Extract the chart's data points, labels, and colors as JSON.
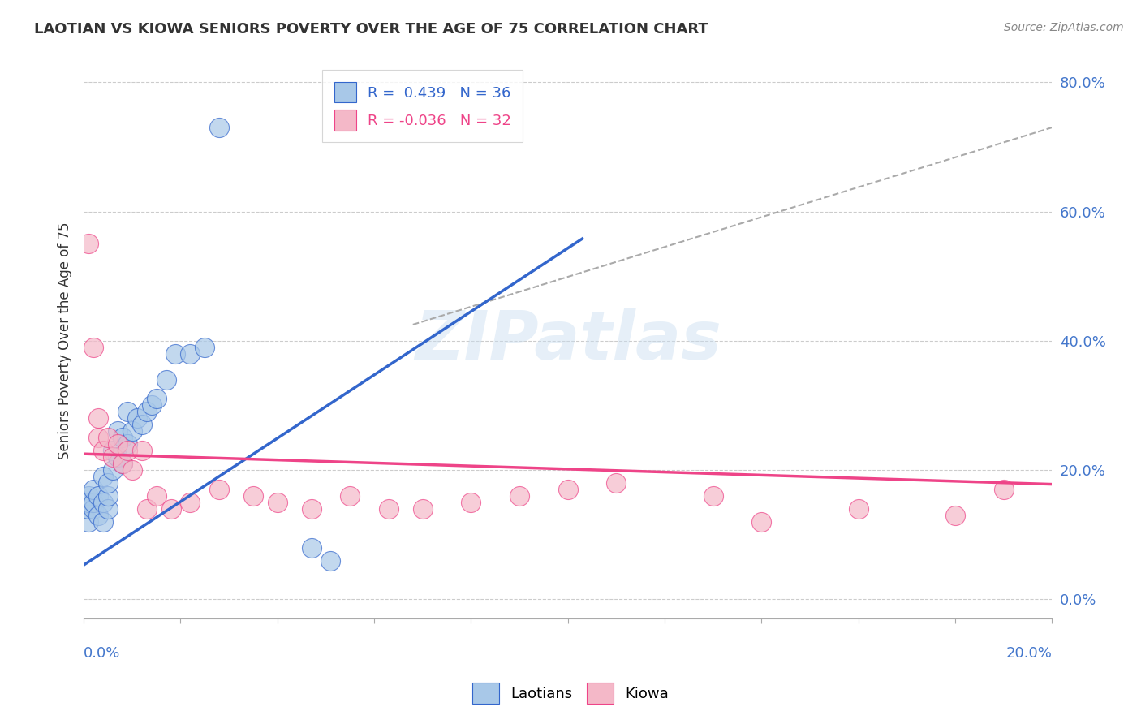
{
  "title": "LAOTIAN VS KIOWA SENIORS POVERTY OVER THE AGE OF 75 CORRELATION CHART",
  "source": "Source: ZipAtlas.com",
  "ylabel": "Seniors Poverty Over the Age of 75",
  "ytick_labels": [
    "0.0%",
    "20.0%",
    "40.0%",
    "60.0%",
    "80.0%"
  ],
  "ytick_values": [
    0.0,
    0.2,
    0.4,
    0.6,
    0.8
  ],
  "xlim": [
    0.0,
    0.2
  ],
  "ylim": [
    -0.03,
    0.83
  ],
  "legend_r_blue": "R =  0.439",
  "legend_n_blue": "N = 36",
  "legend_r_pink": "R = -0.036",
  "legend_n_pink": "N = 32",
  "watermark": "ZIPatlas",
  "laotian_color": "#a8c8e8",
  "kiowa_color": "#f4b8c8",
  "blue_line_color": "#3366cc",
  "pink_line_color": "#ee4488",
  "gray_dash_color": "#aaaaaa",
  "blue_line_x": [
    0.0,
    0.103
  ],
  "blue_line_y": [
    0.053,
    0.558
  ],
  "pink_line_x": [
    0.0,
    0.2
  ],
  "pink_line_y": [
    0.225,
    0.178
  ],
  "gray_line_x": [
    0.068,
    0.2
  ],
  "gray_line_y": [
    0.425,
    0.73
  ],
  "laotian_points_x": [
    0.001,
    0.001,
    0.001,
    0.001,
    0.002,
    0.002,
    0.002,
    0.003,
    0.003,
    0.004,
    0.004,
    0.004,
    0.005,
    0.005,
    0.005,
    0.006,
    0.006,
    0.007,
    0.007,
    0.008,
    0.008,
    0.009,
    0.009,
    0.01,
    0.011,
    0.012,
    0.013,
    0.014,
    0.015,
    0.017,
    0.019,
    0.022,
    0.025,
    0.028,
    0.047,
    0.051
  ],
  "laotian_points_y": [
    0.12,
    0.14,
    0.15,
    0.16,
    0.14,
    0.15,
    0.17,
    0.13,
    0.16,
    0.12,
    0.15,
    0.19,
    0.14,
    0.16,
    0.18,
    0.2,
    0.23,
    0.22,
    0.26,
    0.21,
    0.25,
    0.24,
    0.29,
    0.26,
    0.28,
    0.27,
    0.29,
    0.3,
    0.31,
    0.34,
    0.38,
    0.38,
    0.39,
    0.73,
    0.08,
    0.06
  ],
  "kiowa_points_x": [
    0.001,
    0.002,
    0.003,
    0.003,
    0.004,
    0.005,
    0.006,
    0.007,
    0.008,
    0.009,
    0.01,
    0.012,
    0.013,
    0.015,
    0.018,
    0.022,
    0.028,
    0.035,
    0.04,
    0.047,
    0.055,
    0.063,
    0.07,
    0.08,
    0.09,
    0.1,
    0.11,
    0.13,
    0.14,
    0.16,
    0.18,
    0.19
  ],
  "kiowa_points_y": [
    0.55,
    0.39,
    0.25,
    0.28,
    0.23,
    0.25,
    0.22,
    0.24,
    0.21,
    0.23,
    0.2,
    0.23,
    0.14,
    0.16,
    0.14,
    0.15,
    0.17,
    0.16,
    0.15,
    0.14,
    0.16,
    0.14,
    0.14,
    0.15,
    0.16,
    0.17,
    0.18,
    0.16,
    0.12,
    0.14,
    0.13,
    0.17
  ]
}
